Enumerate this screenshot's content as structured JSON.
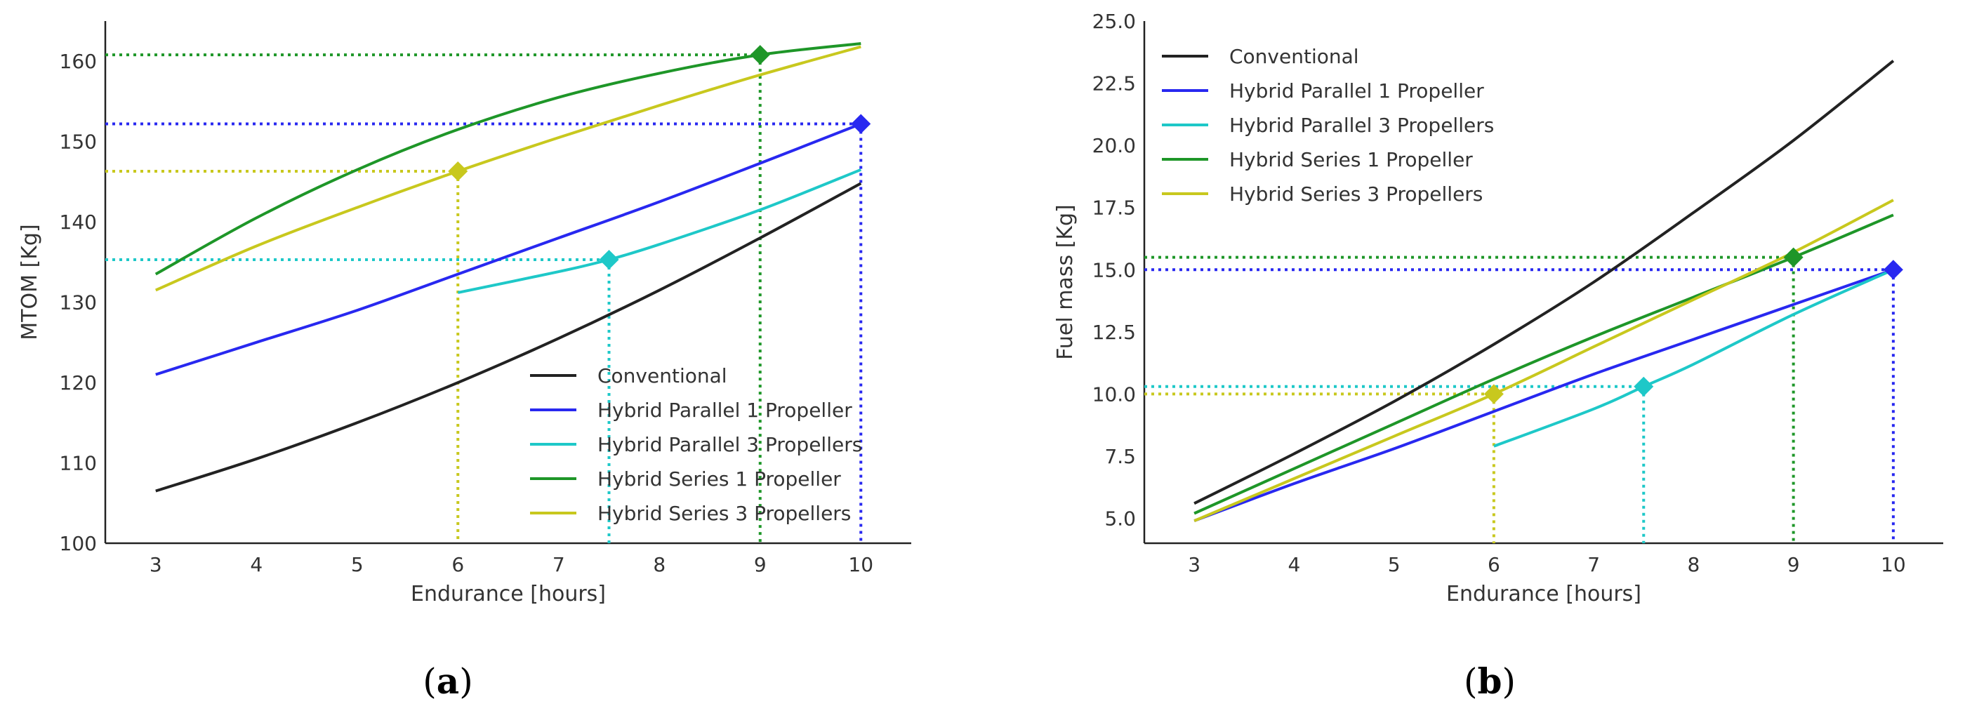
{
  "chart_data": [
    {
      "id": "a",
      "type": "line",
      "caption_open": "(",
      "caption_letter": "a",
      "caption_close": ")",
      "title": "",
      "xlabel": "Endurance [hours]",
      "ylabel": "MTOM [Kg]",
      "xlim": [
        2.5,
        10.5
      ],
      "ylim": [
        100,
        165
      ],
      "xticks": [
        3,
        4,
        5,
        6,
        7,
        8,
        9,
        10
      ],
      "yticks": [
        100,
        110,
        120,
        130,
        140,
        150,
        160
      ],
      "legend_position": "lower-right",
      "series": [
        {
          "name": "Conventional",
          "color": "#222222",
          "x": [
            3,
            4,
            5,
            6,
            7,
            8,
            9,
            10
          ],
          "y": [
            106.5,
            110.5,
            115,
            120,
            125.5,
            131.5,
            138,
            144.8
          ]
        },
        {
          "name": "Hybrid Parallel 1 Propeller",
          "color": "#2828f0",
          "x": [
            3,
            4,
            5,
            6,
            7,
            8,
            9,
            10
          ],
          "y": [
            121,
            125,
            129,
            133.5,
            138,
            142.5,
            147.3,
            152.2
          ]
        },
        {
          "name": "Hybrid Parallel 3 Propellers",
          "color": "#1ec8c8",
          "x": [
            6,
            7,
            7.5,
            8,
            9,
            10
          ],
          "y": [
            131.2,
            133.8,
            135.3,
            137.2,
            141.5,
            146.5
          ]
        },
        {
          "name": "Hybrid Series 1 Propeller",
          "color": "#1e9628",
          "x": [
            3,
            4,
            5,
            6,
            7,
            8,
            9,
            10
          ],
          "y": [
            133.5,
            140.5,
            146.5,
            151.5,
            155.5,
            158.5,
            160.8,
            162.2
          ]
        },
        {
          "name": "Hybrid Series 3 Propellers",
          "color": "#c8c81e",
          "x": [
            3,
            4,
            5,
            6,
            7,
            8,
            9,
            10
          ],
          "y": [
            131.5,
            137,
            141.8,
            146.3,
            150.5,
            154.5,
            158.3,
            161.8
          ]
        }
      ],
      "markers": [
        {
          "color": "#c8c81e",
          "x": 6,
          "y": 146.3
        },
        {
          "color": "#1ec8c8",
          "x": 7.5,
          "y": 135.3
        },
        {
          "color": "#1e9628",
          "x": 9,
          "y": 160.8
        },
        {
          "color": "#2828f0",
          "x": 10,
          "y": 152.2
        }
      ]
    },
    {
      "id": "b",
      "type": "line",
      "caption_open": "(",
      "caption_letter": "b",
      "caption_close": ")",
      "title": "",
      "xlabel": "Endurance [hours]",
      "ylabel": "Fuel mass [Kg]",
      "xlim": [
        2.5,
        10.5
      ],
      "ylim": [
        4,
        25
      ],
      "xticks": [
        3,
        4,
        5,
        6,
        7,
        8,
        9,
        10
      ],
      "yticks": [
        5.0,
        7.5,
        10.0,
        12.5,
        15.0,
        17.5,
        20.0,
        22.5,
        25.0
      ],
      "ytick_labels": [
        "5.0",
        "7.5",
        "10.0",
        "12.5",
        "15.0",
        "17.5",
        "20.0",
        "22.5",
        "25.0"
      ],
      "legend_position": "top-left",
      "series": [
        {
          "name": "Conventional",
          "color": "#222222",
          "x": [
            3,
            4,
            5,
            6,
            7,
            8,
            9,
            10
          ],
          "y": [
            5.6,
            7.6,
            9.7,
            12.0,
            14.5,
            17.3,
            20.2,
            23.4
          ]
        },
        {
          "name": "Hybrid Parallel 1 Propeller",
          "color": "#2828f0",
          "x": [
            3,
            4,
            5,
            6,
            7,
            8,
            9,
            10
          ],
          "y": [
            4.9,
            6.4,
            7.8,
            9.3,
            10.8,
            12.2,
            13.6,
            15.0
          ]
        },
        {
          "name": "Hybrid Parallel 3 Propellers",
          "color": "#1ec8c8",
          "x": [
            6,
            7,
            7.5,
            8,
            9,
            10
          ],
          "y": [
            7.9,
            9.4,
            10.3,
            11.2,
            13.2,
            15.0
          ]
        },
        {
          "name": "Hybrid Series 1 Propeller",
          "color": "#1e9628",
          "x": [
            3,
            4,
            5,
            6,
            7,
            8,
            9,
            10
          ],
          "y": [
            5.2,
            7.0,
            8.8,
            10.6,
            12.3,
            13.9,
            15.5,
            17.2
          ]
        },
        {
          "name": "Hybrid Series 3 Propellers",
          "color": "#c8c81e",
          "x": [
            3,
            4,
            5,
            6,
            7,
            8,
            9,
            10
          ],
          "y": [
            4.9,
            6.6,
            8.3,
            10.0,
            11.9,
            13.8,
            15.7,
            17.8
          ]
        }
      ],
      "markers": [
        {
          "color": "#c8c81e",
          "x": 6,
          "y": 10.0
        },
        {
          "color": "#1ec8c8",
          "x": 7.5,
          "y": 10.3
        },
        {
          "color": "#1e9628",
          "x": 9,
          "y": 15.5
        },
        {
          "color": "#2828f0",
          "x": 10,
          "y": 15.0
        }
      ]
    }
  ]
}
